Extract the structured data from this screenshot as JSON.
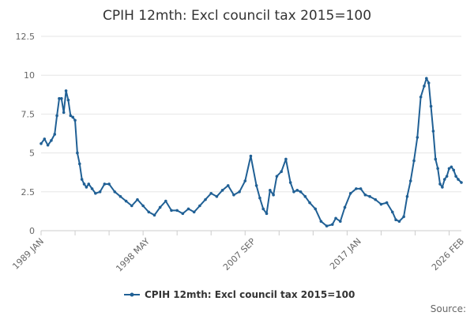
{
  "chart_data": {
    "type": "line",
    "title": "CPIH 12mth: Excl council tax 2015=100",
    "xlabel": "",
    "ylabel": "",
    "x_range": [
      1989.0,
      2026.08
    ],
    "ylim": [
      0,
      12.5
    ],
    "y_ticks": [
      "0",
      "2.5",
      "5",
      "7.5",
      "10",
      "12.5"
    ],
    "y_tick_values": [
      0,
      2.5,
      5,
      7.5,
      10,
      12.5
    ],
    "x_tick_labels": [
      "1989 JAN",
      "1998 MAY",
      "2007 SEP",
      "2017 JAN",
      "2026 FEB"
    ],
    "x_tick_values": [
      1989.0,
      1998.33,
      2007.67,
      2017.0,
      2026.08
    ],
    "grid": true,
    "legend_position": "bottom",
    "series": [
      {
        "name": "CPIH 12mth: Excl council tax 2015=100",
        "color": "#206095",
        "x": [
          1989.0,
          1989.3,
          1989.6,
          1989.9,
          1990.2,
          1990.4,
          1990.6,
          1990.8,
          1991.0,
          1991.2,
          1991.4,
          1991.6,
          1991.8,
          1992.0,
          1992.2,
          1992.4,
          1992.6,
          1992.8,
          1993.0,
          1993.2,
          1993.5,
          1993.8,
          1994.2,
          1994.6,
          1995.0,
          1995.5,
          1996.0,
          1996.5,
          1997.0,
          1997.5,
          1998.0,
          1998.5,
          1999.0,
          1999.5,
          2000.0,
          2000.5,
          2001.0,
          2001.5,
          2002.0,
          2002.5,
          2003.0,
          2003.5,
          2004.0,
          2004.5,
          2005.0,
          2005.5,
          2006.0,
          2006.5,
          2007.0,
          2007.5,
          2008.0,
          2008.3,
          2008.6,
          2008.9,
          2009.2,
          2009.5,
          2009.8,
          2010.2,
          2010.6,
          2011.0,
          2011.3,
          2011.6,
          2011.9,
          2012.3,
          2012.7,
          2013.2,
          2013.7,
          2014.2,
          2014.7,
          2015.0,
          2015.4,
          2015.8,
          2016.3,
          2016.8,
          2017.2,
          2017.6,
          2018.0,
          2018.5,
          2019.0,
          2019.5,
          2020.0,
          2020.3,
          2020.6,
          2021.0,
          2021.3,
          2021.6,
          2021.9,
          2022.2,
          2022.5,
          2022.8,
          2023.0,
          2023.2,
          2023.4,
          2023.6,
          2023.8,
          2024.0,
          2024.2,
          2024.4,
          2024.6,
          2024.8,
          2025.0,
          2025.2,
          2025.4,
          2025.6,
          2025.8,
          2026.08
        ],
        "values": [
          5.6,
          5.9,
          5.5,
          5.8,
          6.2,
          7.4,
          8.5,
          8.5,
          7.6,
          9.0,
          8.4,
          7.4,
          7.3,
          7.1,
          5.0,
          4.3,
          3.3,
          3.0,
          2.8,
          3.0,
          2.7,
          2.4,
          2.5,
          3.0,
          3.0,
          2.5,
          2.2,
          1.9,
          1.6,
          2.0,
          1.6,
          1.2,
          1.0,
          1.5,
          1.9,
          1.3,
          1.3,
          1.1,
          1.4,
          1.2,
          1.6,
          2.0,
          2.4,
          2.2,
          2.6,
          2.9,
          2.3,
          2.5,
          3.2,
          4.8,
          2.9,
          2.1,
          1.4,
          1.1,
          2.6,
          2.3,
          3.5,
          3.8,
          4.6,
          3.1,
          2.5,
          2.6,
          2.5,
          2.2,
          1.8,
          1.4,
          0.6,
          0.3,
          0.4,
          0.8,
          0.6,
          1.5,
          2.4,
          2.7,
          2.7,
          2.3,
          2.2,
          2.0,
          1.7,
          1.8,
          1.2,
          0.7,
          0.6,
          0.9,
          2.2,
          3.2,
          4.5,
          6.0,
          8.6,
          9.3,
          9.8,
          9.5,
          8.0,
          6.4,
          4.6,
          4.0,
          3.0,
          2.8,
          3.3,
          3.5,
          4.0,
          4.1,
          3.9,
          3.5,
          3.3,
          3.1
        ]
      }
    ]
  },
  "legend": {
    "label": "CPIH 12mth: Excl council tax 2015=100"
  },
  "footer": {
    "source_label": "Source:"
  }
}
